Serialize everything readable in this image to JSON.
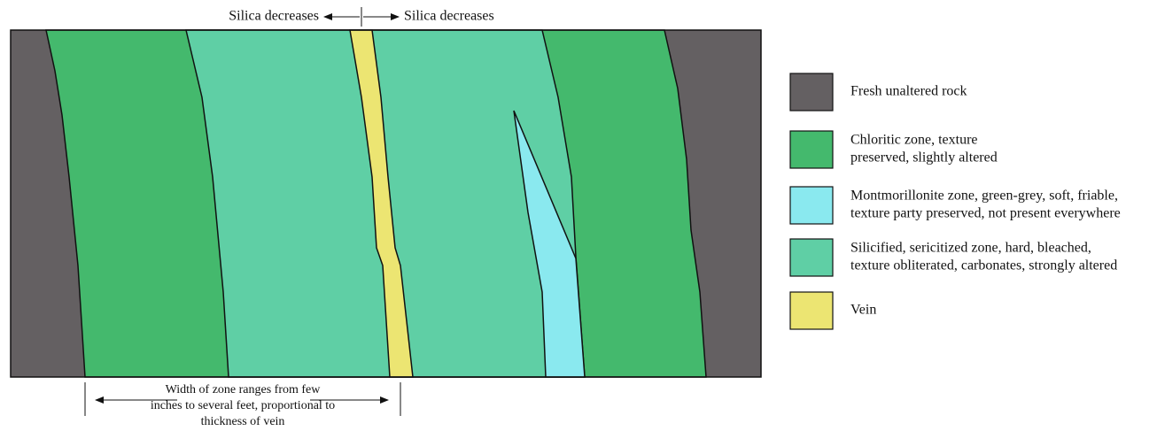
{
  "top_annotation": {
    "left": "Silica decreases",
    "right": "Silica decreases"
  },
  "bottom_annotation": {
    "lines": [
      "Width of zone ranges from few",
      "inches to several feet, proportional to",
      "thickness of vein"
    ]
  },
  "legend": {
    "items": [
      {
        "lines": [
          "Fresh unaltered rock"
        ]
      },
      {
        "lines": [
          "Chloritic zone, texture",
          "preserved, slightly altered"
        ]
      },
      {
        "lines": [
          "Montmorillonite zone, green-grey, soft, friable,",
          "texture party preserved, not present everywhere"
        ]
      },
      {
        "lines": [
          "Silicified, sericitized zone, hard, bleached,",
          "texture obliterated, carbonates, strongly altered"
        ]
      },
      {
        "lines": [
          "Vein"
        ]
      }
    ]
  }
}
